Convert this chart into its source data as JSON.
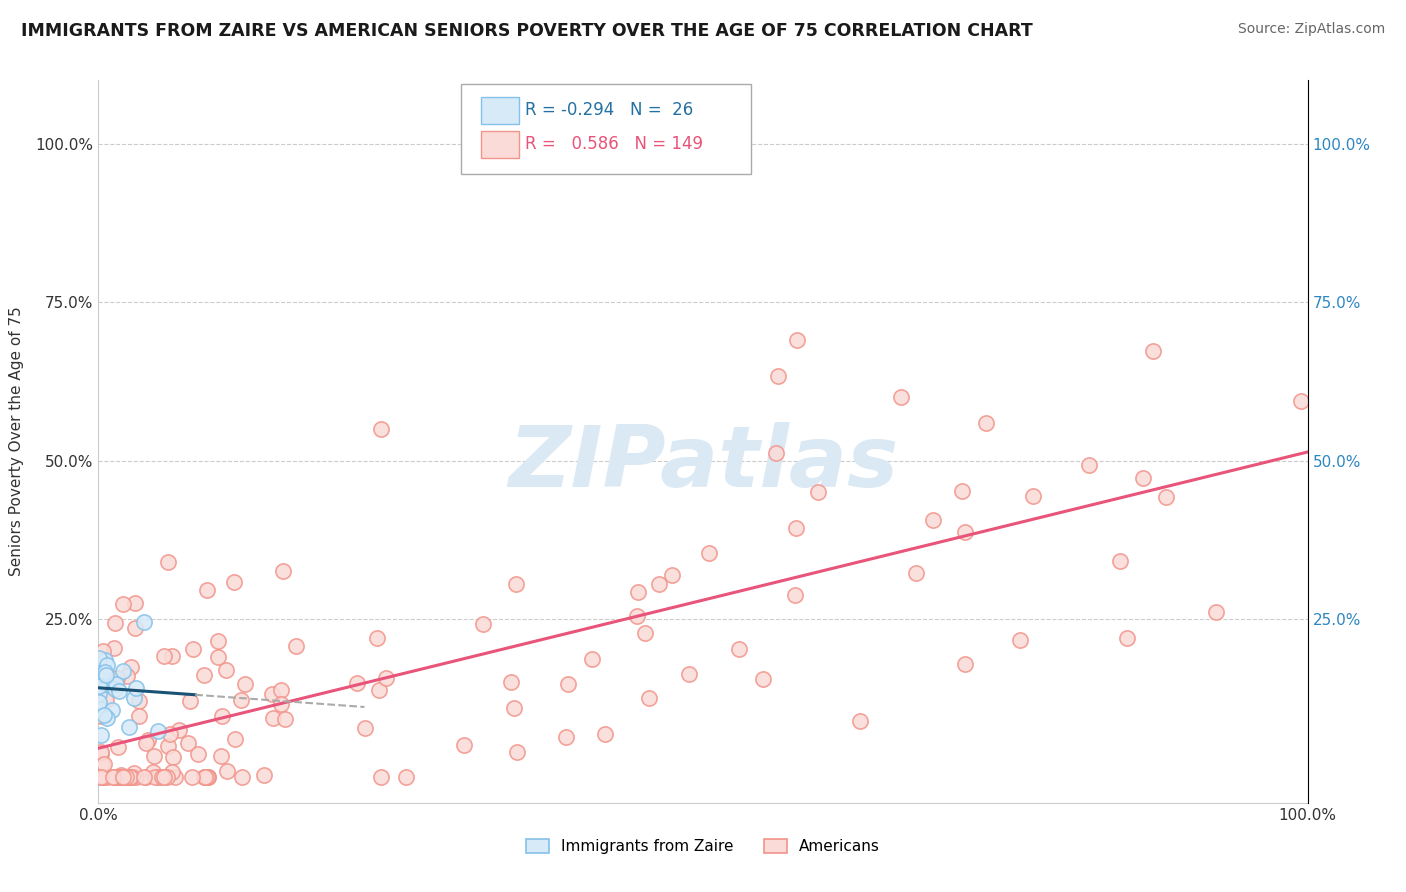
{
  "title": "IMMIGRANTS FROM ZAIRE VS AMERICAN SENIORS POVERTY OVER THE AGE OF 75 CORRELATION CHART",
  "source": "Source: ZipAtlas.com",
  "ylabel": "Seniors Poverty Over the Age of 75",
  "legend_blue_R": "-0.294",
  "legend_blue_N": "26",
  "legend_pink_R": "0.586",
  "legend_pink_N": "149",
  "legend_blue_label": "Immigrants from Zaire",
  "legend_pink_label": "Americans",
  "xlim": [
    0.0,
    1.0
  ],
  "ylim": [
    -0.04,
    1.1
  ],
  "ytick_values": [
    0.25,
    0.5,
    0.75,
    1.0
  ],
  "ytick_labels": [
    "25.0%",
    "50.0%",
    "75.0%",
    "100.0%"
  ],
  "background_color": "#ffffff",
  "grid_color": "#cccccc",
  "blue_color": "#85c1e9",
  "pink_color": "#f1948a",
  "blue_fill_color": "#d6eaf8",
  "pink_fill_color": "#fadbd8",
  "blue_line_color": "#1a5276",
  "pink_line_color": "#e8547a",
  "watermark_color": "#dbe9f4",
  "right_tick_color": "#2e86c1"
}
